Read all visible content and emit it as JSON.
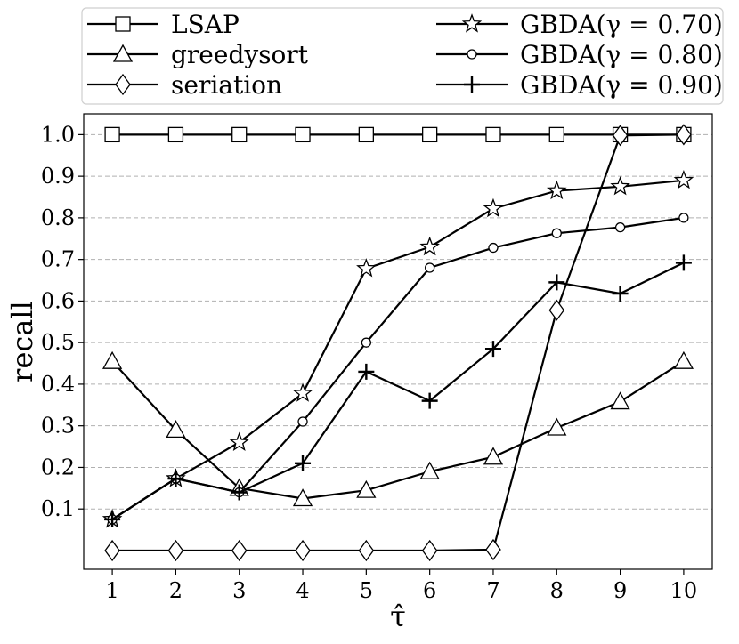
{
  "chart_data": {
    "type": "line",
    "xlabel": "τ̂",
    "ylabel": "recall",
    "x": [
      1,
      2,
      3,
      4,
      5,
      6,
      7,
      8,
      9,
      10
    ],
    "xlim": [
      0.55,
      10.45
    ],
    "ylim": [
      -0.045,
      1.05
    ],
    "yticks": [
      0.1,
      0.2,
      0.3,
      0.4,
      0.5,
      0.6,
      0.7,
      0.8,
      0.9,
      1.0
    ],
    "ytick_labels": [
      "0.1",
      "0.2",
      "0.3",
      "0.4",
      "0.5",
      "0.6",
      "0.7",
      "0.8",
      "0.9",
      "1.0"
    ],
    "xtick_labels": [
      "1",
      "2",
      "3",
      "4",
      "5",
      "6",
      "7",
      "8",
      "9",
      "10"
    ],
    "grid": "horizontal dashed",
    "legend_position": "top, outside plot, two columns",
    "series": [
      {
        "name": "LSAP",
        "marker": "square",
        "values": [
          1.0,
          1.0,
          1.0,
          1.0,
          1.0,
          1.0,
          1.0,
          1.0,
          1.0,
          1.0
        ]
      },
      {
        "name": "greedysort",
        "marker": "triangle",
        "values": [
          0.455,
          0.29,
          0.15,
          0.125,
          0.145,
          0.19,
          0.225,
          0.295,
          0.358,
          0.455
        ]
      },
      {
        "name": "seriation",
        "marker": "diamond",
        "values": [
          0.0,
          0.0,
          0.0,
          0.0,
          0.0,
          0.0,
          0.002,
          0.578,
          0.998,
          1.0
        ]
      },
      {
        "name": "GBDA(γ = 0.70)",
        "marker": "star",
        "values": [
          0.075,
          0.173,
          0.26,
          0.378,
          0.678,
          0.73,
          0.822,
          0.865,
          0.875,
          0.89
        ]
      },
      {
        "name": "GBDA(γ = 0.80)",
        "marker": "circle",
        "values": [
          0.075,
          0.173,
          0.14,
          0.31,
          0.5,
          0.68,
          0.728,
          0.763,
          0.777,
          0.8
        ]
      },
      {
        "name": "GBDA(γ = 0.90)",
        "marker": "plus",
        "values": [
          0.075,
          0.173,
          0.14,
          0.21,
          0.43,
          0.36,
          0.485,
          0.645,
          0.618,
          0.692
        ]
      }
    ]
  }
}
